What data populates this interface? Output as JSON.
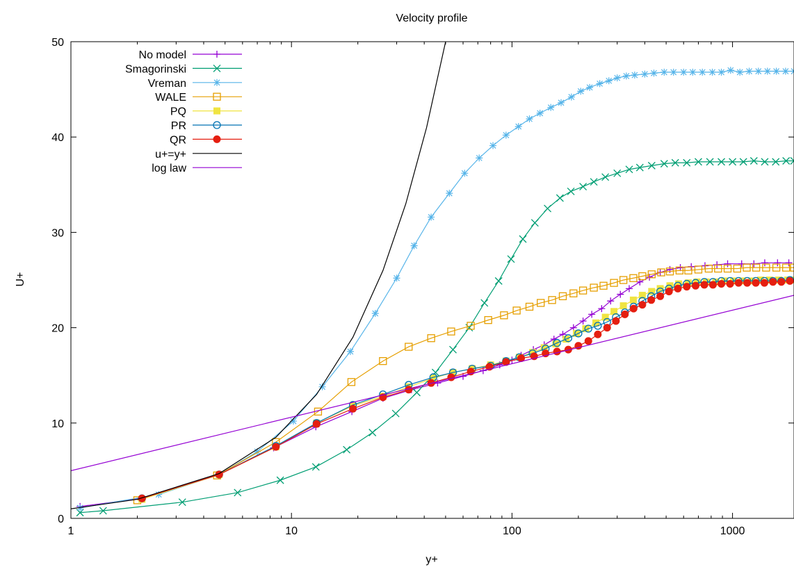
{
  "chart_data": {
    "type": "line",
    "title": "Velocity profile",
    "xlabel": "y+",
    "ylabel": "U+",
    "xscale": "log",
    "xlim": [
      1,
      1900
    ],
    "ylim": [
      0,
      50
    ],
    "xticks": [
      1,
      10,
      100,
      1000
    ],
    "xtick_labels": [
      "1",
      "10",
      "100",
      "1000"
    ],
    "yticks": [
      0,
      10,
      20,
      30,
      40,
      50
    ],
    "ytick_labels": [
      "0",
      "10",
      "20",
      "30",
      "40",
      "50"
    ],
    "grid": false,
    "legend_position": "top-left",
    "series": [
      {
        "name": "No model",
        "color": "#9400d3",
        "marker": "plus",
        "x": [
          1.1,
          2.1,
          4.7,
          8.3,
          12.9,
          18.8,
          26,
          35,
          46,
          60,
          74,
          88,
          100,
          110,
          125,
          140,
          155,
          170,
          190,
          210,
          230,
          255,
          280,
          310,
          340,
          380,
          420,
          470,
          520,
          580,
          650,
          750,
          850,
          950,
          1100,
          1250,
          1400,
          1600,
          1800
        ],
        "y": [
          1.25,
          2.1,
          4.6,
          7.4,
          9.6,
          11.2,
          12.6,
          13.5,
          14.2,
          14.9,
          15.5,
          16.1,
          16.6,
          17.1,
          17.7,
          18.2,
          18.8,
          19.3,
          20.0,
          20.7,
          21.4,
          22.0,
          22.8,
          23.5,
          24.1,
          24.8,
          25.3,
          25.8,
          26.1,
          26.3,
          26.4,
          26.5,
          26.6,
          26.7,
          26.7,
          26.7,
          26.8,
          26.8,
          26.8
        ]
      },
      {
        "name": "Smagorinski",
        "color": "#009e73",
        "marker": "cross",
        "x": [
          1.1,
          1.4,
          3.2,
          5.7,
          8.9,
          12.9,
          17.8,
          23.3,
          29.7,
          37,
          45,
          54,
          64,
          75,
          87,
          99,
          112,
          127,
          145,
          165,
          185,
          210,
          235,
          265,
          300,
          340,
          380,
          430,
          490,
          550,
          620,
          700,
          790,
          890,
          1000,
          1120,
          1250,
          1400,
          1570,
          1750,
          1900
        ],
        "y": [
          0.6,
          0.8,
          1.7,
          2.7,
          4.0,
          5.4,
          7.2,
          9.0,
          11.0,
          13.2,
          15.3,
          17.7,
          20.0,
          22.6,
          24.9,
          27.2,
          29.3,
          31.0,
          32.5,
          33.6,
          34.3,
          34.8,
          35.3,
          35.8,
          36.2,
          36.6,
          36.8,
          37.0,
          37.2,
          37.3,
          37.3,
          37.4,
          37.4,
          37.4,
          37.4,
          37.4,
          37.5,
          37.4,
          37.4,
          37.5,
          37.5
        ]
      },
      {
        "name": "Vreman",
        "color": "#56b4e9",
        "marker": "star",
        "x": [
          1.1,
          2.5,
          4.7,
          7.0,
          10.2,
          13.8,
          18.5,
          24,
          30,
          36,
          43,
          52,
          61,
          71,
          82,
          94,
          107,
          120,
          134,
          150,
          167,
          186,
          205,
          225,
          250,
          275,
          300,
          330,
          360,
          400,
          440,
          490,
          540,
          600,
          660,
          730,
          810,
          890,
          980,
          1080,
          1190,
          1310,
          1440,
          1580,
          1740,
          1900
        ],
        "y": [
          1.1,
          2.5,
          4.6,
          7.0,
          10.2,
          13.8,
          17.5,
          21.5,
          25.2,
          28.6,
          31.6,
          34.1,
          36.2,
          37.8,
          39.1,
          40.2,
          41.1,
          41.9,
          42.5,
          43.1,
          43.6,
          44.2,
          44.8,
          45.2,
          45.6,
          45.9,
          46.2,
          46.4,
          46.5,
          46.6,
          46.7,
          46.8,
          46.8,
          46.8,
          46.8,
          46.8,
          46.8,
          46.8,
          47.0,
          46.8,
          46.9,
          46.9,
          46.9,
          46.9,
          46.9,
          46.9
        ]
      },
      {
        "name": "WALE",
        "color": "#e69f00",
        "marker": "square-open",
        "x": [
          2.0,
          4.6,
          8.5,
          13.2,
          18.7,
          26,
          34,
          43,
          53,
          65,
          78,
          92,
          105,
          120,
          135,
          152,
          170,
          190,
          210,
          235,
          260,
          290,
          320,
          355,
          390,
          430,
          475,
          520,
          575,
          630,
          700,
          780,
          860,
          950,
          1050,
          1160,
          1280,
          1420,
          1580,
          1750,
          1900
        ],
        "y": [
          1.9,
          4.5,
          8.0,
          11.2,
          14.3,
          16.5,
          18.0,
          18.9,
          19.6,
          20.2,
          20.8,
          21.3,
          21.8,
          22.2,
          22.6,
          22.9,
          23.3,
          23.6,
          23.9,
          24.2,
          24.4,
          24.7,
          25.0,
          25.2,
          25.4,
          25.6,
          25.8,
          25.9,
          26.0,
          26.0,
          26.1,
          26.2,
          26.2,
          26.2,
          26.2,
          26.3,
          26.3,
          26.3,
          26.3,
          26.3,
          26.3
        ]
      },
      {
        "name": "PQ",
        "color": "#f0e442",
        "marker": "square-filled",
        "x": [
          2.1,
          4.7,
          8.5,
          13,
          19,
          26,
          34,
          44,
          54,
          66,
          80,
          94,
          108,
          124,
          140,
          158,
          176,
          196,
          216,
          240,
          265,
          290,
          320,
          355,
          390,
          430,
          470,
          520,
          570,
          630,
          690,
          760,
          840,
          920,
          1010,
          1110,
          1220,
          1340,
          1470,
          1620,
          1780,
          1900
        ],
        "y": [
          2.0,
          4.6,
          7.5,
          10.0,
          11.8,
          12.8,
          13.8,
          14.7,
          15.3,
          15.7,
          16.1,
          16.5,
          16.9,
          17.4,
          17.9,
          18.3,
          18.8,
          19.4,
          19.9,
          20.5,
          21.1,
          21.7,
          22.3,
          22.9,
          23.4,
          23.8,
          24.1,
          24.4,
          24.6,
          24.7,
          24.8,
          24.8,
          24.8,
          24.9,
          24.9,
          24.9,
          24.9,
          25.0,
          25.0,
          25.0,
          25.0,
          25.0
        ]
      },
      {
        "name": "PR",
        "color": "#0072b2",
        "marker": "circle-open",
        "x": [
          2.1,
          4.7,
          8.5,
          13,
          19,
          26,
          34,
          44,
          54,
          66,
          80,
          94,
          108,
          124,
          142,
          160,
          180,
          200,
          222,
          245,
          270,
          296,
          325,
          356,
          390,
          428,
          470,
          515,
          565,
          620,
          680,
          745,
          815,
          890,
          975,
          1065,
          1165,
          1275,
          1395,
          1525,
          1665,
          1820
        ],
        "y": [
          2.1,
          4.6,
          7.6,
          10.0,
          11.9,
          13.0,
          14.0,
          14.8,
          15.3,
          15.7,
          16.0,
          16.5,
          16.9,
          17.3,
          17.8,
          18.4,
          18.9,
          19.4,
          19.9,
          20.2,
          20.6,
          21.1,
          21.6,
          22.2,
          22.8,
          23.3,
          23.8,
          24.1,
          24.4,
          24.6,
          24.7,
          24.8,
          24.8,
          24.9,
          24.9,
          24.9,
          24.9,
          24.9,
          24.9,
          24.9,
          24.9,
          25.0
        ]
      },
      {
        "name": "QR",
        "color": "#e51e10",
        "marker": "circle-filled",
        "x": [
          2.1,
          4.7,
          8.5,
          13,
          19,
          26,
          34,
          43,
          53,
          65,
          79,
          94,
          110,
          126,
          142,
          160,
          180,
          200,
          222,
          245,
          270,
          296,
          325,
          356,
          390,
          428,
          470,
          515,
          565,
          620,
          680,
          745,
          815,
          890,
          975,
          1065,
          1165,
          1275,
          1395,
          1525,
          1665,
          1820
        ],
        "y": [
          2.1,
          4.6,
          7.5,
          9.9,
          11.5,
          12.7,
          13.5,
          14.2,
          14.8,
          15.4,
          15.9,
          16.4,
          16.8,
          17.0,
          17.3,
          17.5,
          17.7,
          18.1,
          18.6,
          19.3,
          20.0,
          20.7,
          21.4,
          22.0,
          22.4,
          22.9,
          23.3,
          23.8,
          24.1,
          24.3,
          24.4,
          24.5,
          24.5,
          24.6,
          24.6,
          24.7,
          24.7,
          24.7,
          24.7,
          24.8,
          24.8,
          24.9
        ]
      },
      {
        "name": "u+=y+",
        "color": "#000000",
        "marker": "none",
        "x": [
          1,
          2,
          4.7,
          8.5,
          13,
          19,
          26,
          33,
          41,
          50
        ],
        "y": [
          1,
          2,
          4.7,
          8.5,
          13,
          19,
          26,
          33,
          41,
          50
        ]
      },
      {
        "name": "log law",
        "color": "#9400d3",
        "marker": "none",
        "x": [
          1,
          1900
        ],
        "y": [
          5.0,
          23.4
        ]
      }
    ]
  }
}
